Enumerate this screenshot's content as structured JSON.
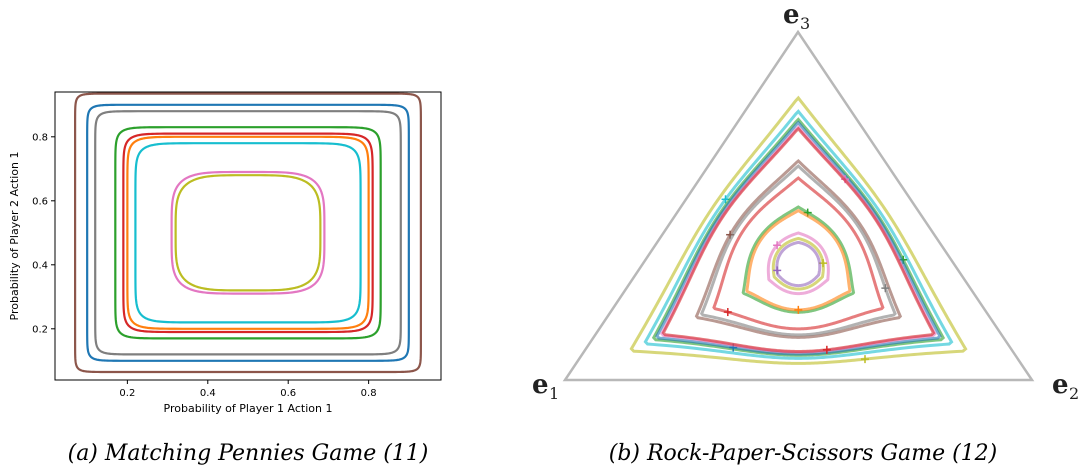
{
  "captions": {
    "a": "(a)  Matching Pennies Game (11)",
    "b": "(b)  Rock-Paper-Scissors Game (12)"
  },
  "chart_data": [
    {
      "type": "line",
      "xlabel": "Probability of Player 1 Action 1",
      "ylabel": "Probability of Player 2 Action 1",
      "xlim": [
        0.02,
        0.98
      ],
      "ylim": [
        0.04,
        0.94
      ],
      "xticks": [
        "0.2",
        "0.4",
        "0.6",
        "0.8"
      ],
      "yticks": [
        "0.2",
        "0.4",
        "0.6",
        "0.8"
      ],
      "grid": false,
      "series": [
        {
          "color": "#8c564b",
          "xmin": 0.07,
          "xmax": 0.93,
          "ymin": 0.065,
          "ymax": 0.935
        },
        {
          "color": "#1f77b4",
          "xmin": 0.1,
          "xmax": 0.9,
          "ymin": 0.1,
          "ymax": 0.9
        },
        {
          "color": "#7f7f7f",
          "xmin": 0.12,
          "xmax": 0.88,
          "ymin": 0.12,
          "ymax": 0.88
        },
        {
          "color": "#2ca02c",
          "xmin": 0.17,
          "xmax": 0.83,
          "ymin": 0.17,
          "ymax": 0.83
        },
        {
          "color": "#d62728",
          "xmin": 0.19,
          "xmax": 0.81,
          "ymin": 0.19,
          "ymax": 0.81
        },
        {
          "color": "#ff7f0e",
          "xmin": 0.2,
          "xmax": 0.8,
          "ymin": 0.2,
          "ymax": 0.8
        },
        {
          "color": "#17becf",
          "xmin": 0.22,
          "xmax": 0.78,
          "ymin": 0.22,
          "ymax": 0.78
        },
        {
          "color": "#e377c2",
          "xmin": 0.31,
          "xmax": 0.69,
          "ymin": 0.31,
          "ymax": 0.69
        },
        {
          "color": "#bcbd22",
          "xmin": 0.32,
          "xmax": 0.68,
          "ymin": 0.32,
          "ymax": 0.68
        }
      ]
    },
    {
      "type": "line",
      "vertices": [
        "e",
        "1",
        "e",
        "2",
        "e",
        "3"
      ],
      "series": [
        {
          "color": "#bcbd22",
          "rel": 0.84
        },
        {
          "color": "#17becf",
          "rel": 0.8
        },
        {
          "color": "#2ca02c",
          "rel": 0.775
        },
        {
          "color": "#1f77b4",
          "rel": 0.765
        },
        {
          "color": "#e377c2",
          "rel": 0.75
        },
        {
          "color": "#d62728",
          "rel": 0.745
        },
        {
          "color": "#8c564b",
          "rel": 0.63
        },
        {
          "color": "#7f7f7f",
          "rel": 0.61
        },
        {
          "color": "#d62728",
          "rel": 0.56
        },
        {
          "color": "#2ca02c",
          "rel": 0.42
        },
        {
          "color": "#ff7f0e",
          "rel": 0.4
        },
        {
          "color": "#e377c2",
          "rel": 0.26
        },
        {
          "color": "#bcbd22",
          "rel": 0.22
        },
        {
          "color": "#9467bd",
          "rel": 0.19
        }
      ]
    }
  ]
}
